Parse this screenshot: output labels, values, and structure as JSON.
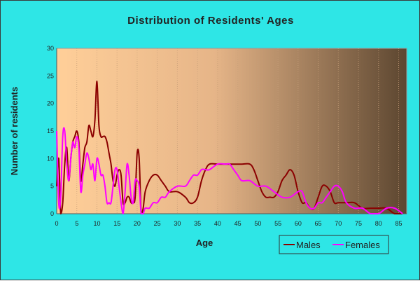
{
  "chart_data": {
    "type": "line",
    "title": "Distribution of Residents' Ages",
    "xlabel": "Age",
    "ylabel": "Number of residents",
    "xlim": [
      0,
      87
    ],
    "ylim": [
      0,
      30
    ],
    "xticks": [
      0,
      5,
      10,
      15,
      20,
      25,
      30,
      35,
      40,
      45,
      50,
      55,
      60,
      65,
      70,
      75,
      80,
      85
    ],
    "yticks": [
      0,
      5,
      10,
      15,
      20,
      25,
      30
    ],
    "grid": "vertical dotted lines",
    "legend_position": "bottom-right",
    "background": "gradient from peach (left) to dark brown (right)",
    "colors": {
      "frame_background": "#2ee6e6",
      "plot_gradient_left": "#ffcf99",
      "plot_gradient_mid": "#e6b588",
      "plot_gradient_right": "#5c4630",
      "males": "#8b0000",
      "females": "#ff00ff"
    },
    "series": [
      {
        "name": "Males",
        "x": [
          0,
          0.5,
          1,
          1.5,
          2,
          2.5,
          3,
          3.5,
          4,
          4.5,
          5,
          5.5,
          6,
          6.5,
          7,
          7.5,
          8,
          8.5,
          9,
          9.5,
          10,
          10.5,
          11,
          11.5,
          12,
          12.5,
          13,
          13.5,
          14,
          14.5,
          15,
          15.5,
          16,
          16.5,
          17,
          17.5,
          18,
          18.5,
          19,
          19.5,
          20,
          20.5,
          21,
          21.5,
          22,
          23,
          24,
          25,
          26,
          27,
          28,
          30,
          32,
          33,
          34,
          35,
          36,
          37,
          38,
          40,
          42,
          44,
          46,
          48,
          49,
          50,
          51,
          52,
          53,
          54,
          55,
          56,
          57,
          58,
          59,
          60,
          61,
          62,
          63,
          64,
          65,
          66,
          67,
          68,
          69,
          70,
          72,
          74,
          76,
          78,
          80,
          82,
          84,
          86
        ],
        "y": [
          5,
          10,
          0,
          2,
          9,
          12,
          6,
          10,
          13,
          14,
          15,
          13,
          6,
          9,
          12,
          13,
          16,
          15,
          14,
          17,
          24,
          16,
          14,
          14,
          14,
          13,
          11,
          9,
          6,
          5,
          7,
          8,
          7,
          2,
          2,
          3,
          3,
          2,
          2,
          3,
          11,
          10,
          0,
          1,
          4,
          6,
          7,
          7,
          6,
          5,
          4,
          4,
          3,
          2,
          2,
          3,
          6,
          8,
          9,
          9,
          9,
          9,
          9,
          9,
          8,
          6,
          4,
          3,
          3,
          3,
          4,
          6,
          7,
          8,
          7,
          4,
          2,
          2,
          1,
          1,
          3,
          5,
          5,
          4,
          2,
          2,
          2,
          2,
          1,
          1,
          1,
          1,
          0,
          0
        ]
      },
      {
        "name": "Females",
        "x": [
          0,
          0.5,
          1,
          1.5,
          2,
          2.5,
          3,
          3.5,
          4,
          4.5,
          5,
          5.5,
          6,
          6.5,
          7,
          7.5,
          8,
          8.5,
          9,
          9.5,
          10,
          10.5,
          11,
          11.5,
          12,
          12.5,
          13,
          13.5,
          14,
          14.5,
          15,
          15.5,
          16,
          16.5,
          17,
          17.5,
          18,
          18.5,
          19,
          19.5,
          20,
          20.5,
          21,
          21.5,
          22,
          23,
          24,
          25,
          26,
          27,
          28,
          30,
          32,
          33,
          34,
          35,
          36,
          37,
          38,
          40,
          42,
          43,
          44,
          45,
          46,
          48,
          50,
          52,
          54,
          56,
          58,
          60,
          61,
          62,
          63,
          64,
          65,
          66,
          67,
          68,
          69,
          70,
          71,
          72,
          74,
          76,
          78,
          80,
          82,
          84,
          86
        ],
        "y": [
          15,
          2,
          3,
          14,
          15,
          9,
          6,
          10,
          13,
          12,
          14,
          12,
          4,
          7,
          9,
          11,
          10,
          8,
          9,
          6,
          10,
          9,
          7,
          7,
          5,
          2,
          2,
          2,
          5,
          8,
          8,
          5,
          2,
          0,
          4,
          9,
          7,
          3,
          2,
          6,
          6,
          5,
          0,
          0,
          1,
          1,
          2,
          2,
          3,
          3,
          4,
          5,
          5,
          6,
          7,
          7,
          8,
          8,
          8,
          9,
          9,
          9,
          8,
          7,
          6,
          6,
          5,
          5,
          4,
          3,
          3,
          4,
          4,
          2,
          1,
          1,
          2,
          2,
          3,
          4,
          5,
          5,
          4,
          2,
          1,
          1,
          0,
          0,
          1,
          1,
          0
        ]
      }
    ]
  }
}
